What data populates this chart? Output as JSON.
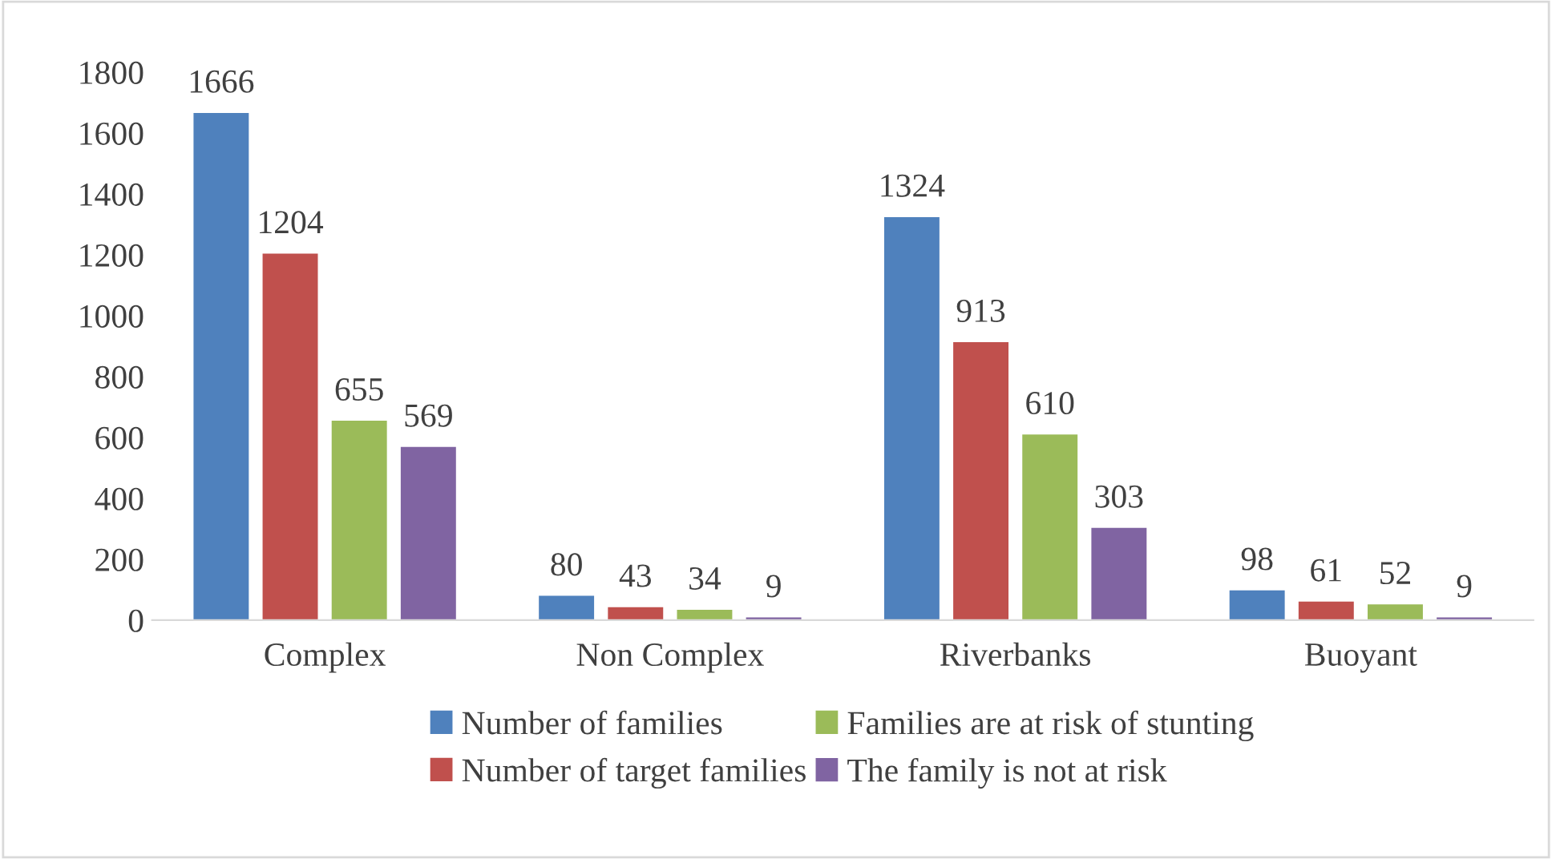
{
  "chart_data": {
    "type": "bar",
    "categories": [
      "Complex",
      "Non Complex",
      "Riverbanks",
      "Buoyant"
    ],
    "series": [
      {
        "name": "Number of families",
        "color": "#4f81bd",
        "values": [
          1666,
          80,
          1324,
          98
        ]
      },
      {
        "name": "Number of target families",
        "color": "#c0504d",
        "values": [
          1204,
          43,
          913,
          61
        ]
      },
      {
        "name": "Families are at risk of stunting",
        "color": "#9bbb59",
        "values": [
          655,
          34,
          610,
          52
        ]
      },
      {
        "name": "The family is not at risk",
        "color": "#8064a2",
        "values": [
          569,
          9,
          303,
          9
        ]
      }
    ],
    "ylim": [
      0,
      1800
    ],
    "yticks": [
      0,
      200,
      400,
      600,
      800,
      1000,
      1200,
      1400,
      1600,
      1800
    ],
    "data_labels": true,
    "legend": "bottom",
    "grid": false
  }
}
